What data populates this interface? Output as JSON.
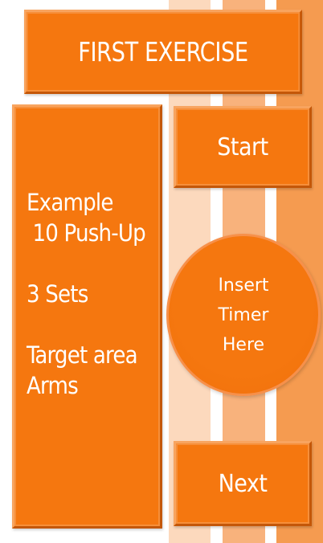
{
  "header": {
    "title": "FIRST EXERCISE"
  },
  "exercise": {
    "line1": "Example",
    "line2": " 10 Push-Up",
    "sets": "3 Sets",
    "target_label": "Target area",
    "target_value": "Arms"
  },
  "controls": {
    "start_label": "Start",
    "next_label": "Next"
  },
  "timer": {
    "line1": "Insert",
    "line2": "Timer",
    "line3": "Here"
  },
  "colors": {
    "accent": "#f5770f",
    "stripe_light": "#fcd9bd",
    "stripe_mid": "#f8b27c",
    "stripe_dark": "#f59b50"
  }
}
